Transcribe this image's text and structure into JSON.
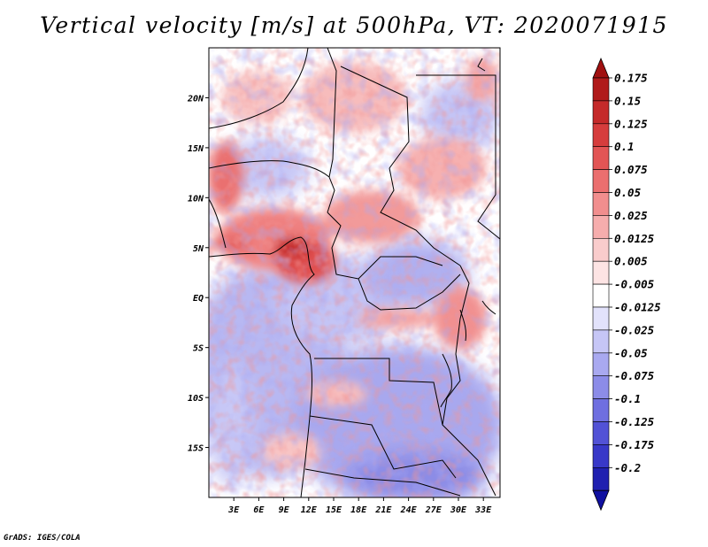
{
  "title": "Vertical velocity [m/s] at 500hPa, VT: 2020071915",
  "footer": "GrADS: IGES/COLA",
  "map": {
    "lon_ticks": [
      "3E",
      "6E",
      "9E",
      "12E",
      "15E",
      "18E",
      "21E",
      "24E",
      "27E",
      "30E",
      "33E"
    ],
    "lat_ticks": [
      "20N",
      "15N",
      "10N",
      "5N",
      "EQ",
      "5S",
      "10S",
      "15S"
    ],
    "lon_range": [
      0,
      35
    ],
    "lat_range": [
      -20,
      25
    ]
  },
  "colorbar": {
    "levels": [
      {
        "label": "0.175",
        "color": "#b01a1a"
      },
      {
        "label": "0.15",
        "color": "#c52a2a"
      },
      {
        "label": "0.125",
        "color": "#d63d3d"
      },
      {
        "label": "0.1",
        "color": "#e25555"
      },
      {
        "label": "0.075",
        "color": "#eb6f6f"
      },
      {
        "label": "0.05",
        "color": "#f18e8e"
      },
      {
        "label": "0.025",
        "color": "#f6adad"
      },
      {
        "label": "0.0125",
        "color": "#f9cccc"
      },
      {
        "label": "0.005",
        "color": "#fde4e4"
      },
      {
        "label": "-0.005",
        "color": "#ffffff"
      },
      {
        "label": "-0.0125",
        "color": "#e2e2fb"
      },
      {
        "label": "-0.025",
        "color": "#c6c6f6"
      },
      {
        "label": "-0.05",
        "color": "#a9a9f0"
      },
      {
        "label": "-0.075",
        "color": "#8c8ce8"
      },
      {
        "label": "-0.1",
        "color": "#6f6fe0"
      },
      {
        "label": "-0.125",
        "color": "#5252d6"
      },
      {
        "label": "-0.175",
        "color": "#3838c8"
      },
      {
        "label": "-0.2",
        "color": "#2020b0"
      }
    ],
    "top_color": "#a01010",
    "bottom_color": "#1010a0"
  }
}
